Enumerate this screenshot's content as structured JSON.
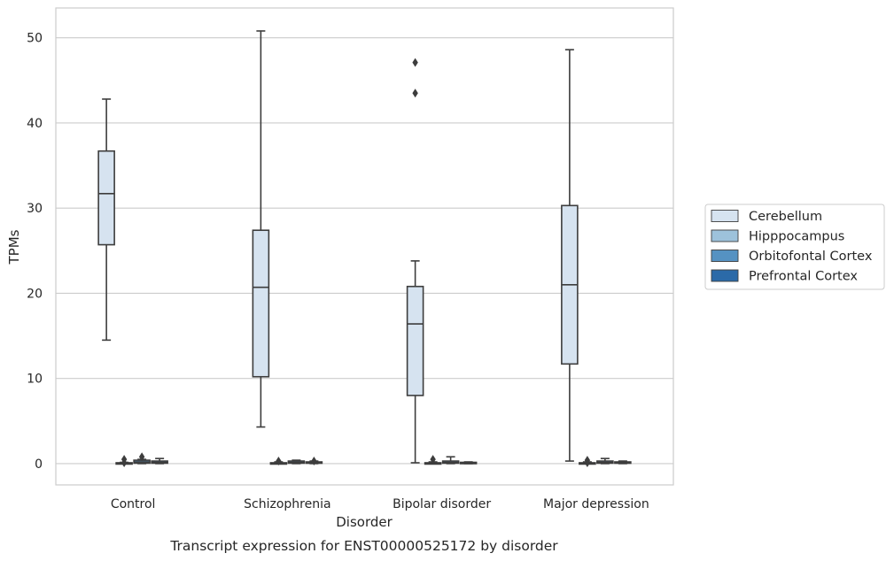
{
  "chart_data": {
    "type": "box",
    "caption": "Transcript expression for ENST00000525172 by disorder",
    "xlabel": "Disorder",
    "ylabel": "TPMs",
    "ylim": [
      -2.5,
      53.5
    ],
    "yticks": [
      0,
      10,
      20,
      30,
      40,
      50
    ],
    "grid": true,
    "legend_position": "right",
    "categories": [
      "Control",
      "Schizophrenia",
      "Bipolar disorder",
      "Major depression"
    ],
    "series": [
      {
        "name": "Cerebellum",
        "color": "#d6e3f0",
        "boxes": [
          {
            "whislo": 14.5,
            "q1": 25.7,
            "med": 31.7,
            "q3": 36.7,
            "whishi": 42.8,
            "fliers": []
          },
          {
            "whislo": 4.3,
            "q1": 10.2,
            "med": 20.7,
            "q3": 27.4,
            "whishi": 50.8,
            "fliers": []
          },
          {
            "whislo": 0.1,
            "q1": 8.0,
            "med": 16.4,
            "q3": 20.8,
            "whishi": 23.8,
            "fliers": [
              43.5,
              47.1
            ]
          },
          {
            "whislo": 0.3,
            "q1": 11.7,
            "med": 21.0,
            "q3": 30.3,
            "whishi": 48.6,
            "fliers": []
          }
        ]
      },
      {
        "name": "Hipppocampus",
        "color": "#9dc2db",
        "boxes": [
          {
            "whislo": 0.0,
            "q1": 0.02,
            "med": 0.05,
            "q3": 0.1,
            "whishi": 0.15,
            "fliers": [
              0.1,
              0.5
            ]
          },
          {
            "whislo": 0.0,
            "q1": 0.02,
            "med": 0.05,
            "q3": 0.1,
            "whishi": 0.2,
            "fliers": [
              0.3
            ]
          },
          {
            "whislo": 0.0,
            "q1": 0.02,
            "med": 0.05,
            "q3": 0.1,
            "whishi": 0.2,
            "fliers": [
              0.5
            ]
          },
          {
            "whislo": 0.0,
            "q1": 0.02,
            "med": 0.05,
            "q3": 0.1,
            "whishi": 0.2,
            "fliers": [
              0.1,
              0.4
            ]
          }
        ]
      },
      {
        "name": "Orbitofontal Cortex",
        "color": "#5592c2",
        "boxes": [
          {
            "whislo": 0.0,
            "q1": 0.05,
            "med": 0.2,
            "q3": 0.4,
            "whishi": 0.5,
            "fliers": [
              0.8
            ]
          },
          {
            "whislo": 0.0,
            "q1": 0.05,
            "med": 0.15,
            "q3": 0.3,
            "whishi": 0.4,
            "fliers": []
          },
          {
            "whislo": 0.0,
            "q1": 0.05,
            "med": 0.15,
            "q3": 0.3,
            "whishi": 0.8,
            "fliers": []
          },
          {
            "whislo": 0.0,
            "q1": 0.05,
            "med": 0.15,
            "q3": 0.3,
            "whishi": 0.6,
            "fliers": []
          }
        ]
      },
      {
        "name": "Prefrontal Cortex",
        "color": "#2b6aa8",
        "boxes": [
          {
            "whislo": 0.0,
            "q1": 0.05,
            "med": 0.15,
            "q3": 0.3,
            "whishi": 0.6,
            "fliers": []
          },
          {
            "whislo": 0.0,
            "q1": 0.05,
            "med": 0.1,
            "q3": 0.2,
            "whishi": 0.3,
            "fliers": [
              0.3
            ]
          },
          {
            "whislo": 0.0,
            "q1": 0.02,
            "med": 0.05,
            "q3": 0.15,
            "whishi": 0.2,
            "fliers": []
          },
          {
            "whislo": 0.0,
            "q1": 0.05,
            "med": 0.1,
            "q3": 0.2,
            "whishi": 0.3,
            "fliers": []
          }
        ]
      }
    ]
  }
}
